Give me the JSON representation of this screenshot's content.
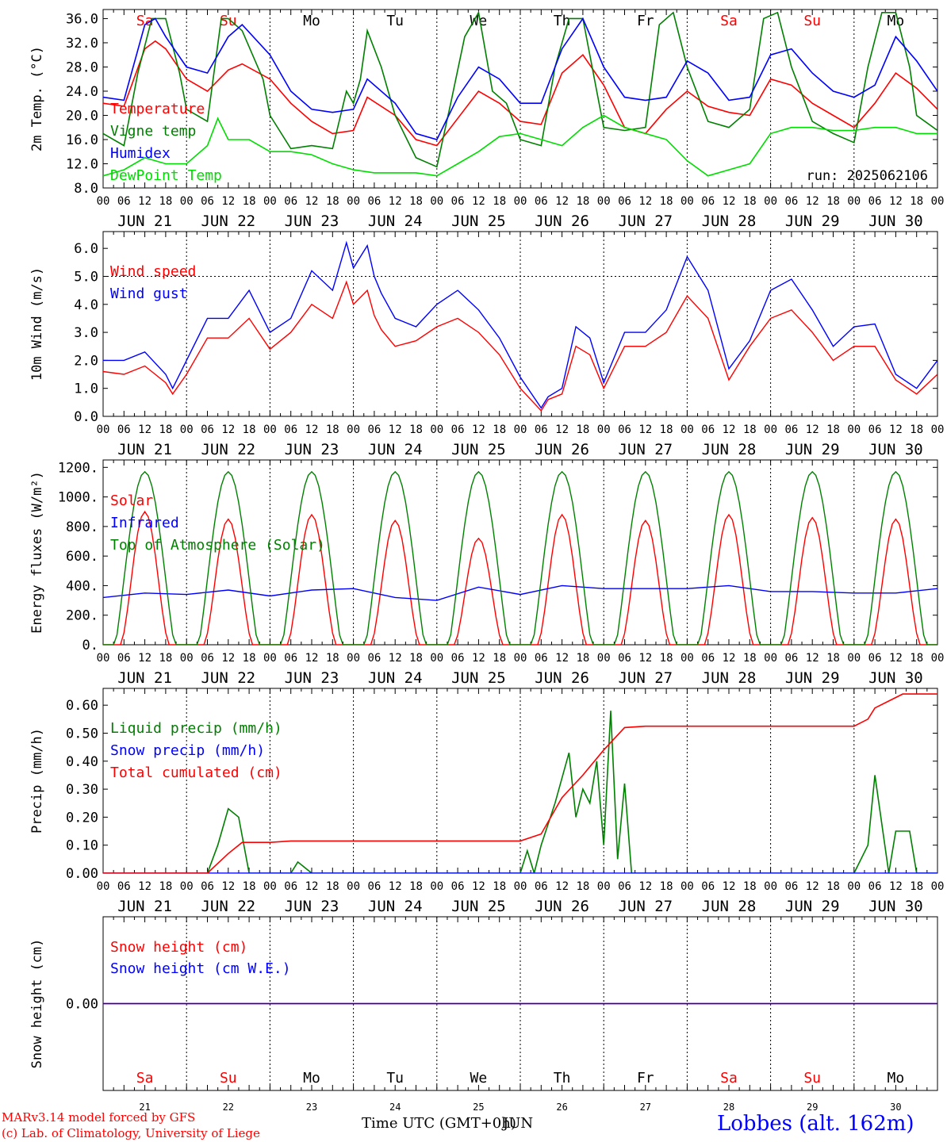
{
  "footer": {
    "model_line": "MARv3.14 model forced by GFS",
    "copyright_line": "(c) Lab. of Climatology, University of Liege",
    "xlabel": "Time UTC (GMT+0h)",
    "overlap_label": "JUN",
    "station": "Lobbes (alt. 162m)"
  },
  "colors": {
    "red": "#ff0000",
    "green": "#008000",
    "blue": "#0000ff",
    "lime": "#00dd00",
    "weekend": "#ff0000",
    "weekday": "#000000"
  },
  "days": {
    "abbr": [
      "Sa",
      "Su",
      "Mo",
      "Tu",
      "We",
      "Th",
      "Fr",
      "Sa",
      "Su",
      "Mo"
    ],
    "weekend": [
      true,
      true,
      false,
      false,
      false,
      false,
      false,
      true,
      true,
      false
    ],
    "dates": [
      "JUN 21",
      "JUN 22",
      "JUN 23",
      "JUN 24",
      "JUN 25",
      "JUN 26",
      "JUN 27",
      "JUN 28",
      "JUN 29",
      "JUN 30"
    ],
    "numbers": [
      "21",
      "22",
      "23",
      "24",
      "25",
      "26",
      "27",
      "28",
      "29",
      "30"
    ],
    "hour_labels": [
      "00",
      "06",
      "12",
      "18"
    ],
    "final_hour_label": "00"
  },
  "chart_data": [
    {
      "type": "line",
      "title": "",
      "ylabel": "2m Temp. (°C)",
      "ylim": [
        8,
        37.5
      ],
      "yticks": [
        "8.0",
        "12.0",
        "16.0",
        "20.0",
        "24.0",
        "28.0",
        "32.0",
        "36.0"
      ],
      "annotation": "run: 2025062106",
      "x_unit": "hours since 2025-06-21 00 UTC",
      "series": [
        {
          "name": "Temperature",
          "color": "#ff0000",
          "x": [
            0,
            6,
            12,
            15,
            18,
            24,
            30,
            36,
            40,
            48,
            54,
            60,
            66,
            72,
            76,
            84,
            90,
            96,
            102,
            108,
            114,
            120,
            126,
            132,
            138,
            144,
            150,
            156,
            162,
            168,
            174,
            180,
            186,
            192,
            198,
            204,
            210,
            216,
            222,
            228,
            234,
            240
          ],
          "y": [
            22,
            21.5,
            31,
            32.3,
            31,
            26,
            24,
            27.5,
            28.5,
            26,
            22,
            19,
            17,
            17.5,
            23,
            20,
            16,
            15,
            19.5,
            24,
            22,
            19,
            18.5,
            27,
            30,
            25,
            18,
            17,
            21,
            24,
            21.5,
            20.5,
            20,
            26,
            25,
            22,
            20,
            18,
            22,
            27,
            24.5,
            21
          ]
        },
        {
          "name": "Vigne temp",
          "color": "#008000",
          "x": [
            0,
            6,
            10,
            14,
            18,
            22,
            24,
            30,
            34,
            36,
            40,
            46,
            48,
            54,
            60,
            66,
            70,
            72,
            74,
            76,
            80,
            84,
            90,
            96,
            100,
            104,
            108,
            112,
            116,
            120,
            126,
            130,
            134,
            138,
            142,
            144,
            150,
            156,
            160,
            164,
            168,
            174,
            180,
            186,
            190,
            194,
            198,
            204,
            210,
            216,
            220,
            224,
            228,
            232,
            234,
            240
          ],
          "y": [
            17,
            15,
            27,
            36,
            36,
            27,
            21,
            19,
            36,
            36,
            34,
            26,
            20,
            14.5,
            15,
            14.5,
            24,
            22,
            26,
            34,
            28,
            20,
            13,
            11.5,
            22,
            33,
            37,
            24,
            22,
            16,
            15,
            28,
            36,
            36,
            24,
            18,
            17.5,
            18,
            35,
            37,
            28,
            19,
            18,
            21,
            36,
            37,
            28,
            19,
            17,
            15.5,
            28,
            37,
            37,
            28,
            20,
            17.5
          ]
        },
        {
          "name": "Humidex",
          "color": "#0000ff",
          "x": [
            0,
            6,
            12,
            15,
            18,
            24,
            30,
            36,
            40,
            48,
            54,
            60,
            66,
            72,
            76,
            84,
            90,
            96,
            102,
            108,
            114,
            120,
            126,
            132,
            138,
            144,
            150,
            156,
            162,
            168,
            174,
            180,
            186,
            192,
            198,
            204,
            210,
            216,
            222,
            228,
            234,
            240
          ],
          "y": [
            23,
            22.5,
            35,
            36,
            33,
            28,
            27,
            33,
            35,
            30,
            24,
            21,
            20.5,
            21,
            26,
            22,
            17,
            16,
            23,
            28,
            26,
            22,
            22,
            31,
            36,
            28,
            23,
            22.5,
            23,
            29,
            27,
            22.5,
            23,
            30,
            31,
            27,
            24,
            23,
            25,
            33,
            29,
            24
          ]
        },
        {
          "name": "DewPoint Temp",
          "color": "#00dd00",
          "x": [
            0,
            6,
            12,
            18,
            24,
            30,
            33,
            36,
            42,
            48,
            54,
            60,
            66,
            72,
            78,
            84,
            90,
            96,
            102,
            108,
            114,
            120,
            126,
            132,
            138,
            144,
            150,
            156,
            162,
            168,
            174,
            180,
            186,
            192,
            198,
            204,
            210,
            216,
            222,
            228,
            234,
            240
          ],
          "y": [
            10,
            11,
            13,
            12,
            12,
            15,
            19.5,
            16,
            16,
            14,
            14,
            13.5,
            12,
            11,
            10.5,
            10.5,
            10.5,
            10,
            12,
            14,
            16.5,
            17,
            16,
            15,
            18,
            20,
            18,
            17,
            16,
            12.5,
            10,
            11,
            12,
            17,
            18,
            18,
            17.5,
            17.5,
            18,
            18,
            17,
            17
          ]
        }
      ]
    },
    {
      "type": "line",
      "title": "",
      "ylabel": "10m Wind (m/s)",
      "ylim": [
        0,
        6.6
      ],
      "yticks": [
        "0.0",
        "1.0",
        "2.0",
        "3.0",
        "4.0",
        "5.0",
        "6.0"
      ],
      "ref_line": 5.0,
      "series": [
        {
          "name": "Wind speed",
          "color": "#ff0000",
          "x": [
            0,
            6,
            12,
            18,
            20,
            24,
            30,
            36,
            42,
            48,
            54,
            60,
            66,
            70,
            72,
            76,
            78,
            80,
            84,
            90,
            96,
            102,
            108,
            114,
            120,
            126,
            128,
            132,
            136,
            140,
            144,
            150,
            156,
            162,
            168,
            174,
            180,
            186,
            192,
            198,
            204,
            210,
            216,
            222,
            228,
            234,
            240
          ],
          "y": [
            1.6,
            1.5,
            1.8,
            1.2,
            0.8,
            1.5,
            2.8,
            2.8,
            3.5,
            2.4,
            3.0,
            4.0,
            3.5,
            4.8,
            4.0,
            4.5,
            3.6,
            3.1,
            2.5,
            2.7,
            3.2,
            3.5,
            3.0,
            2.2,
            1.0,
            0.2,
            0.6,
            0.8,
            2.5,
            2.2,
            1.0,
            2.5,
            2.5,
            3.0,
            4.3,
            3.5,
            1.3,
            2.5,
            3.5,
            3.8,
            3.0,
            2.0,
            2.5,
            2.5,
            1.3,
            0.8,
            1.5
          ]
        },
        {
          "name": "Wind gust",
          "color": "#0000ff",
          "x": [
            0,
            6,
            12,
            18,
            20,
            24,
            30,
            36,
            42,
            48,
            54,
            60,
            66,
            70,
            72,
            76,
            78,
            80,
            84,
            90,
            96,
            102,
            108,
            114,
            120,
            126,
            128,
            132,
            136,
            140,
            144,
            150,
            156,
            162,
            168,
            174,
            180,
            186,
            192,
            198,
            204,
            210,
            216,
            222,
            228,
            234,
            240
          ],
          "y": [
            2.0,
            2.0,
            2.3,
            1.5,
            1.0,
            2.0,
            3.5,
            3.5,
            4.5,
            3.0,
            3.5,
            5.2,
            4.5,
            6.2,
            5.3,
            6.1,
            5.0,
            4.4,
            3.5,
            3.2,
            4.0,
            4.5,
            3.8,
            2.8,
            1.4,
            0.3,
            0.7,
            1.0,
            3.2,
            2.8,
            1.2,
            3.0,
            3.0,
            3.8,
            5.7,
            4.5,
            1.7,
            2.7,
            4.5,
            4.9,
            3.8,
            2.5,
            3.2,
            3.3,
            1.5,
            1.0,
            2.0
          ]
        }
      ]
    },
    {
      "type": "line",
      "title": "",
      "ylabel": "Energy fluxes (W/m²)",
      "ylim": [
        0,
        1250
      ],
      "yticks": [
        "0.",
        "200.",
        "400.",
        "600.",
        "800.",
        "1000.",
        "1200."
      ],
      "series": [
        {
          "name": "Solar",
          "color": "#ff0000",
          "daily_peak": [
            900,
            850,
            880,
            840,
            720,
            880,
            840,
            880,
            860,
            850
          ]
        },
        {
          "name": "Infrared",
          "color": "#0000ff",
          "x": [
            0,
            12,
            24,
            36,
            48,
            60,
            72,
            84,
            96,
            108,
            120,
            132,
            144,
            156,
            168,
            180,
            192,
            204,
            216,
            228,
            240
          ],
          "y": [
            320,
            350,
            340,
            370,
            330,
            370,
            380,
            320,
            300,
            390,
            340,
            400,
            380,
            380,
            380,
            400,
            360,
            360,
            350,
            350,
            380
          ]
        },
        {
          "name": "Top of Atmosphere (Solar)",
          "color": "#008000",
          "daily_peak": [
            1170,
            1170,
            1170,
            1170,
            1170,
            1170,
            1170,
            1170,
            1170,
            1170
          ]
        }
      ]
    },
    {
      "type": "line",
      "title": "",
      "ylabel": "Precip (mm/h)",
      "ylim": [
        0,
        0.66
      ],
      "yticks": [
        "0.00",
        "0.10",
        "0.20",
        "0.30",
        "0.40",
        "0.50",
        "0.60"
      ],
      "series": [
        {
          "name": "Liquid precip (mm/h)",
          "color": "#008000",
          "x": [
            0,
            30,
            33,
            36,
            39,
            42,
            48,
            54,
            56,
            60,
            120,
            122,
            124,
            126,
            130,
            134,
            136,
            138,
            140,
            142,
            144,
            146,
            148,
            150,
            152,
            156,
            216,
            220,
            222,
            226,
            228,
            232,
            234,
            240
          ],
          "y": [
            0,
            0,
            0.1,
            0.23,
            0.2,
            0,
            0,
            0,
            0.04,
            0,
            0,
            0.08,
            0,
            0.1,
            0.25,
            0.43,
            0.2,
            0.3,
            0.25,
            0.4,
            0.1,
            0.58,
            0.05,
            0.32,
            0,
            0,
            0,
            0.1,
            0.35,
            0,
            0.15,
            0.15,
            0,
            0
          ]
        },
        {
          "name": "Snow precip (mm/h)",
          "color": "#0000ff",
          "x": [
            0,
            240
          ],
          "y": [
            0,
            0
          ]
        },
        {
          "name": "Total cumulated (cm)",
          "color": "#ff0000",
          "x": [
            0,
            30,
            36,
            40,
            48,
            54,
            60,
            120,
            126,
            132,
            138,
            144,
            150,
            156,
            216,
            220,
            222,
            230,
            240
          ],
          "y": [
            0,
            0,
            0.07,
            0.11,
            0.11,
            0.115,
            0.115,
            0.115,
            0.14,
            0.27,
            0.35,
            0.44,
            0.52,
            0.525,
            0.525,
            0.55,
            0.59,
            0.64,
            0.64
          ]
        }
      ]
    },
    {
      "type": "line",
      "title": "",
      "ylabel": "Snow height (cm)",
      "ylim": [
        -1,
        1
      ],
      "yticks": [
        "0.00"
      ],
      "series": [
        {
          "name": "Snow height (cm)",
          "color": "#ff0000",
          "x": [
            0,
            240
          ],
          "y": [
            0,
            0
          ]
        },
        {
          "name": "Snow height (cm W.E.)",
          "color": "#0000ff",
          "x": [
            0,
            240
          ],
          "y": [
            0,
            0
          ]
        }
      ]
    }
  ]
}
